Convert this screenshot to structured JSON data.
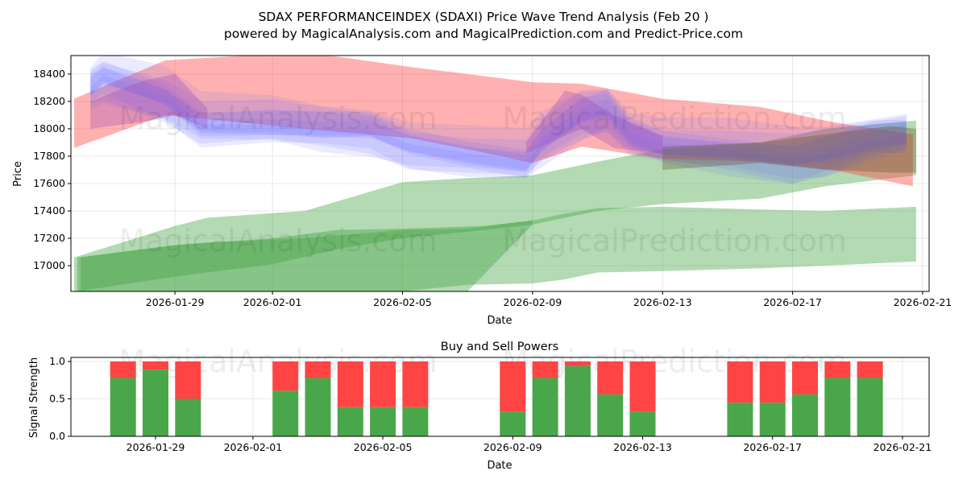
{
  "title_line1": "SDAX PERFORMANCEINDEX (SDAXI) Price Wave Trend Analysis (Feb 20 )",
  "title_line2": "powered by MagicalAnalysis.com and MagicalPrediction.com and Predict-Price.com",
  "watermarks": [
    "MagicalAnalysis.com",
    "MagicalPrediction.com"
  ],
  "colors": {
    "red": "#ff4444",
    "green": "#4aa64a",
    "blue": "#6666ff"
  },
  "chart_data": [
    {
      "type": "area",
      "title": "",
      "xlabel": "Date",
      "ylabel": "Price",
      "x_reference_date": "2026-01-29",
      "x_unit": "days since 2026-01-29",
      "xlim": [
        -3.2,
        23.2
      ],
      "ylim": [
        16812,
        18535
      ],
      "xticks": [
        {
          "v": 0,
          "label": "2026-01-29"
        },
        {
          "v": 3,
          "label": "2026-02-01"
        },
        {
          "v": 7,
          "label": "2026-02-05"
        },
        {
          "v": 11,
          "label": "2026-02-09"
        },
        {
          "v": 15,
          "label": "2026-02-13"
        },
        {
          "v": 19,
          "label": "2026-02-17"
        },
        {
          "v": 23,
          "label": "2026-02-21"
        }
      ],
      "yticks": [
        17000,
        17200,
        17400,
        17600,
        17800,
        18000,
        18200,
        18400
      ],
      "grid": true,
      "bands": [
        {
          "name": "red-wave",
          "color": "red",
          "x": [
            -3.1,
            -0.3,
            4,
            7.3,
            9,
            11,
            12.5,
            15,
            18,
            20.2,
            22.7
          ],
          "upper": [
            18220,
            18500,
            18560,
            18450,
            18400,
            18340,
            18330,
            18220,
            18160,
            18050,
            17960
          ],
          "lower": [
            17860,
            18100,
            18000,
            17930,
            17850,
            17750,
            17870,
            17780,
            17760,
            17700,
            17580
          ]
        },
        {
          "name": "green-wave-upper",
          "color": "green",
          "x": [
            -3.1,
            0,
            1,
            4,
            7,
            9,
            11,
            13,
            15,
            18,
            20,
            22.8
          ],
          "upper": [
            17060,
            17290,
            17350,
            17400,
            17610,
            17640,
            17660,
            17760,
            17850,
            17900,
            18000,
            18060
          ],
          "lower": [
            16812,
            16812,
            16812,
            16812,
            16812,
            16812,
            17300,
            17400,
            17450,
            17490,
            17580,
            17660
          ]
        },
        {
          "name": "green-wave-lower",
          "color": "green",
          "x": [
            -2.9,
            0,
            1,
            4,
            7,
            9,
            11,
            12,
            13,
            15,
            18,
            20,
            22.8
          ],
          "upper": [
            17060,
            17150,
            17170,
            17200,
            17260,
            17270,
            17330,
            17380,
            17420,
            17430,
            17410,
            17400,
            17430
          ],
          "lower": [
            16812,
            16812,
            16812,
            16812,
            16812,
            16860,
            16870,
            16900,
            16950,
            16960,
            16980,
            17000,
            17030
          ]
        }
      ],
      "blue_center": {
        "x": [
          -2.6,
          -2.2,
          -0.3,
          0.8,
          3,
          4.5,
          6,
          7.2,
          9,
          10.8,
          11.3,
          12.5,
          13.3,
          14,
          15,
          17,
          19,
          20,
          21.5,
          22.5
        ],
        "y": [
          18300,
          18380,
          18230,
          18030,
          18030,
          18000,
          17990,
          17880,
          17810,
          17760,
          17900,
          18100,
          18150,
          17960,
          17880,
          17840,
          17780,
          17820,
          17920,
          17960
        ]
      },
      "blue_layers": 6
    },
    {
      "type": "bar",
      "title": "Buy and Sell Powers",
      "xlabel": "Date",
      "ylabel": "Signal Strength",
      "ylim": [
        0,
        1.05
      ],
      "yticks": [
        "0.0",
        "0.5",
        "1.0"
      ],
      "xticks": [
        {
          "v": 0,
          "label": "2026-01-29"
        },
        {
          "v": 3,
          "label": "2026-02-01"
        },
        {
          "v": 7,
          "label": "2026-02-05"
        },
        {
          "v": 11,
          "label": "2026-02-09"
        },
        {
          "v": 15,
          "label": "2026-02-13"
        },
        {
          "v": 19,
          "label": "2026-02-17"
        },
        {
          "v": 23,
          "label": "2026-02-21"
        }
      ],
      "categories": [
        "2026-01-28",
        "2026-01-29",
        "2026-01-30",
        "2026-02-02",
        "2026-02-03",
        "2026-02-04",
        "2026-02-05",
        "2026-02-06",
        "2026-02-09",
        "2026-02-10",
        "2026-02-11",
        "2026-02-12",
        "2026-02-13",
        "2026-02-16",
        "2026-02-17",
        "2026-02-18",
        "2026-02-19",
        "2026-02-20"
      ],
      "day_offsets": [
        -1,
        0,
        1,
        4,
        5,
        6,
        7,
        8,
        11,
        12,
        13,
        14,
        15,
        18,
        19,
        20,
        21,
        22
      ],
      "series": [
        {
          "name": "Buy",
          "color": "green",
          "values": [
            0.78,
            0.89,
            0.5,
            0.61,
            0.78,
            0.39,
            0.39,
            0.39,
            0.33,
            0.78,
            0.94,
            0.56,
            0.33,
            0.45,
            0.45,
            0.56,
            0.78,
            0.78
          ]
        },
        {
          "name": "Sell",
          "color": "red",
          "values": [
            0.22,
            0.11,
            0.5,
            0.39,
            0.22,
            0.61,
            0.61,
            0.61,
            0.67,
            0.22,
            0.06,
            0.44,
            0.67,
            0.55,
            0.55,
            0.44,
            0.22,
            0.22
          ]
        }
      ]
    }
  ]
}
